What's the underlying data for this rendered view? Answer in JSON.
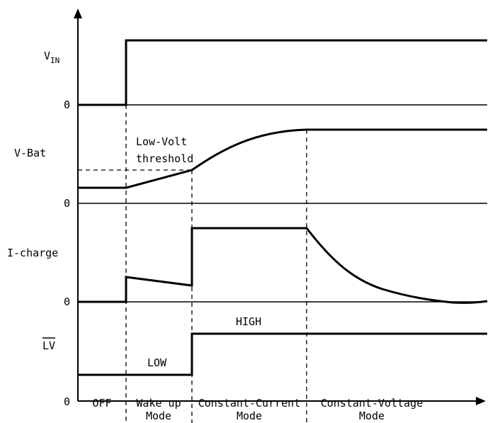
{
  "signals": {
    "vin": {
      "main": "V",
      "sub": "IN"
    },
    "vbat": "V-Bat",
    "icharge": "I-charge",
    "lv": "LV"
  },
  "zero_label": "0",
  "annotations": {
    "low_volt_line1": "Low-Volt",
    "low_volt_line2": "threshold",
    "high": "HIGH",
    "low": "LOW"
  },
  "modes": [
    {
      "line1": "OFF",
      "line2": ""
    },
    {
      "line1": "Wake up",
      "line2": "Mode"
    },
    {
      "line1": "Constant-Current",
      "line2": "Mode"
    },
    {
      "line1": "Constant-Voltage",
      "line2": "Mode"
    }
  ]
}
